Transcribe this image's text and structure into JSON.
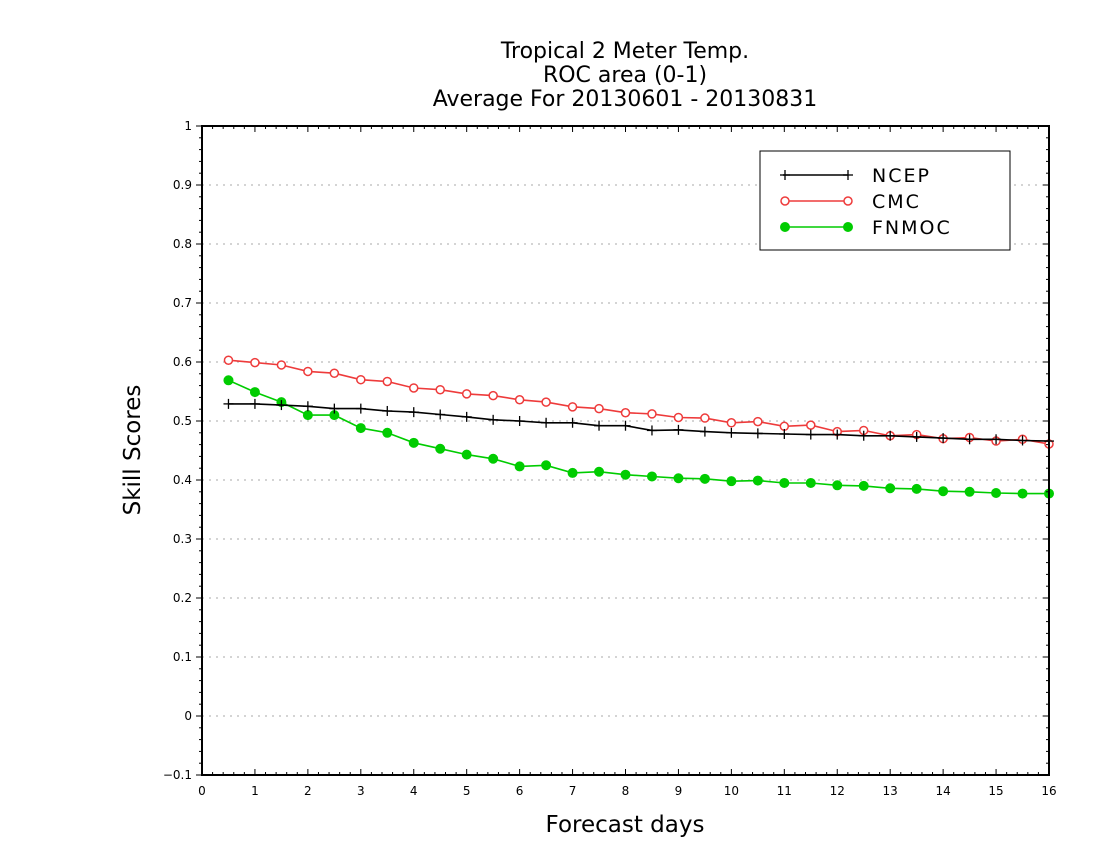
{
  "chart_data": {
    "type": "line",
    "title_lines": [
      "Tropical 2 Meter Temp.",
      "ROC area (0-1)",
      "Average For 20130601 - 20130831"
    ],
    "xlabel": "Forecast days",
    "ylabel": "Skill Scores",
    "xlim": [
      0,
      16
    ],
    "ylim": [
      -0.1,
      1
    ],
    "x_ticks": [
      "0",
      "1",
      "2",
      "3",
      "4",
      "5",
      "6",
      "7",
      "8",
      "9",
      "10",
      "11",
      "12",
      "13",
      "14",
      "15",
      "16"
    ],
    "y_ticks": [
      "−0.1",
      "0",
      "0.1",
      "0.2",
      "0.3",
      "0.4",
      "0.5",
      "0.6",
      "0.7",
      "0.8",
      "0.9",
      "1"
    ],
    "grid": "horizontal dotted",
    "legend_position": "top-right",
    "x": [
      0.5,
      1,
      1.5,
      2,
      2.5,
      3,
      3.5,
      4,
      4.5,
      5,
      5.5,
      6,
      6.5,
      7,
      7.5,
      8,
      8.5,
      9,
      9.5,
      10,
      10.5,
      11,
      11.5,
      12,
      12.5,
      13,
      13.5,
      14,
      14.5,
      15,
      15.5,
      16
    ],
    "series": [
      {
        "name": "NCEP",
        "color": "#000000",
        "marker": "plus",
        "values": [
          0.529,
          0.529,
          0.527,
          0.525,
          0.521,
          0.521,
          0.517,
          0.515,
          0.511,
          0.507,
          0.502,
          0.5,
          0.497,
          0.497,
          0.492,
          0.492,
          0.484,
          0.485,
          0.482,
          0.48,
          0.479,
          0.478,
          0.477,
          0.477,
          0.475,
          0.475,
          0.473,
          0.471,
          0.469,
          0.469,
          0.467,
          0.466
        ]
      },
      {
        "name": "CMC",
        "color": "#ee3b3b",
        "marker": "open-circle",
        "values": [
          0.603,
          0.599,
          0.595,
          0.584,
          0.581,
          0.57,
          0.567,
          0.556,
          0.553,
          0.546,
          0.543,
          0.536,
          0.532,
          0.524,
          0.521,
          0.514,
          0.512,
          0.506,
          0.505,
          0.497,
          0.499,
          0.491,
          0.493,
          0.482,
          0.484,
          0.475,
          0.477,
          0.47,
          0.472,
          0.466,
          0.469,
          0.461
        ]
      },
      {
        "name": "FNMOC",
        "color": "#00cc00",
        "marker": "filled-circle",
        "values": [
          0.569,
          0.549,
          0.532,
          0.51,
          0.51,
          0.488,
          0.48,
          0.463,
          0.453,
          0.443,
          0.436,
          0.423,
          0.425,
          0.412,
          0.414,
          0.409,
          0.406,
          0.403,
          0.402,
          0.398,
          0.399,
          0.395,
          0.395,
          0.391,
          0.39,
          0.386,
          0.385,
          0.381,
          0.38,
          0.378,
          0.377,
          0.377
        ]
      }
    ]
  }
}
